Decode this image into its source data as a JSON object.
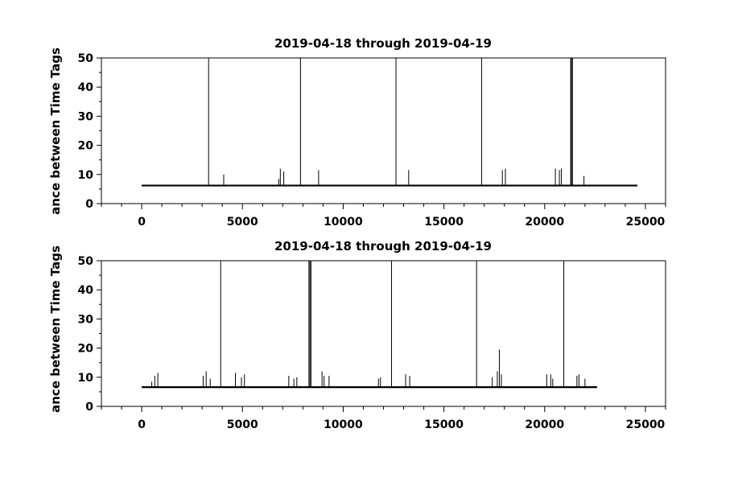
{
  "chart_data": [
    {
      "type": "line",
      "title": "2019-04-18 through 2019-04-19",
      "ylabel": "ance between Time Tags",
      "xlabel": "",
      "xlim": [
        -2000,
        26000
      ],
      "ylim": [
        0,
        50
      ],
      "xticks": [
        0,
        5000,
        10000,
        15000,
        20000,
        25000
      ],
      "yticks": [
        0,
        10,
        20,
        30,
        40,
        50
      ],
      "grid": false,
      "series": [
        {
          "baseline": 6.2,
          "x_range": [
            0,
            24600
          ],
          "spikes": [
            {
              "x": 3320,
              "y": 50
            },
            {
              "x": 4070,
              "y": 10
            },
            {
              "x": 6800,
              "y": 8.5
            },
            {
              "x": 6880,
              "y": 12
            },
            {
              "x": 7050,
              "y": 11
            },
            {
              "x": 7880,
              "y": 50
            },
            {
              "x": 8780,
              "y": 11.5
            },
            {
              "x": 12620,
              "y": 50
            },
            {
              "x": 13250,
              "y": 11.5
            },
            {
              "x": 16870,
              "y": 50
            },
            {
              "x": 17900,
              "y": 11.5
            },
            {
              "x": 18050,
              "y": 12
            },
            {
              "x": 20530,
              "y": 12
            },
            {
              "x": 20730,
              "y": 11.5
            },
            {
              "x": 20830,
              "y": 12
            },
            {
              "x": 21290,
              "y": 50
            },
            {
              "x": 21330,
              "y": 50
            },
            {
              "x": 21380,
              "y": 50
            },
            {
              "x": 21950,
              "y": 9.5
            }
          ]
        }
      ]
    },
    {
      "type": "line",
      "title": "2019-04-18 through 2019-04-19",
      "ylabel": "ance between Time Tags",
      "xlabel": "",
      "xlim": [
        -2000,
        26000
      ],
      "ylim": [
        0,
        50
      ],
      "xticks": [
        0,
        5000,
        10000,
        15000,
        20000,
        25000
      ],
      "yticks": [
        0,
        10,
        20,
        30,
        40,
        50
      ],
      "grid": false,
      "series": [
        {
          "baseline": 6.6,
          "x_range": [
            0,
            22600
          ],
          "spikes": [
            {
              "x": 500,
              "y": 8.5
            },
            {
              "x": 650,
              "y": 10.5
            },
            {
              "x": 800,
              "y": 11.5
            },
            {
              "x": 3050,
              "y": 10.5
            },
            {
              "x": 3200,
              "y": 12
            },
            {
              "x": 3400,
              "y": 9.5
            },
            {
              "x": 3920,
              "y": 50
            },
            {
              "x": 4650,
              "y": 11.5
            },
            {
              "x": 4950,
              "y": 10
            },
            {
              "x": 5100,
              "y": 11
            },
            {
              "x": 7300,
              "y": 10.5
            },
            {
              "x": 7550,
              "y": 9.5
            },
            {
              "x": 7700,
              "y": 10
            },
            {
              "x": 8300,
              "y": 50
            },
            {
              "x": 8350,
              "y": 50
            },
            {
              "x": 8400,
              "y": 50
            },
            {
              "x": 8950,
              "y": 12
            },
            {
              "x": 9050,
              "y": 10.5
            },
            {
              "x": 9300,
              "y": 10.5
            },
            {
              "x": 11750,
              "y": 9.5
            },
            {
              "x": 11850,
              "y": 10
            },
            {
              "x": 12400,
              "y": 50
            },
            {
              "x": 13100,
              "y": 11
            },
            {
              "x": 13300,
              "y": 10.5
            },
            {
              "x": 16620,
              "y": 50
            },
            {
              "x": 17400,
              "y": 10
            },
            {
              "x": 17650,
              "y": 12
            },
            {
              "x": 17750,
              "y": 19.5
            },
            {
              "x": 17850,
              "y": 11
            },
            {
              "x": 20100,
              "y": 11
            },
            {
              "x": 20300,
              "y": 11
            },
            {
              "x": 20400,
              "y": 9.5
            },
            {
              "x": 20950,
              "y": 50
            },
            {
              "x": 21600,
              "y": 10.5
            },
            {
              "x": 21700,
              "y": 11
            },
            {
              "x": 22000,
              "y": 9.5
            }
          ]
        }
      ]
    }
  ]
}
